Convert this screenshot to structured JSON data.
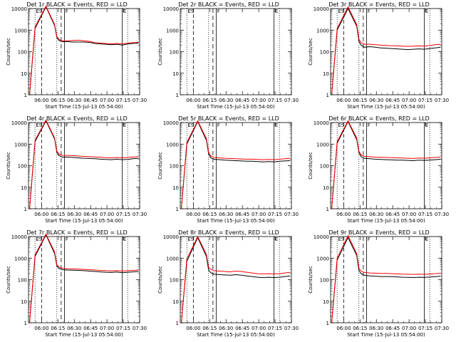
{
  "common": {
    "ylabel": "Counts/sec",
    "xlabel": "Start Time (15-Jul-13 05:54:00)",
    "x_ticks": [
      "06:00",
      "06:15",
      "06:30",
      "06:45",
      "07:00",
      "07:15",
      "07:30"
    ],
    "y_ticks": [
      "1",
      "10",
      "100",
      "1000",
      "10000"
    ],
    "marker_labels": [
      "ES",
      "F",
      "E"
    ],
    "colors": {
      "events": "#000000",
      "lld": "#ff0000",
      "axis": "#000000"
    }
  },
  "chart_data": [
    {
      "type": "line",
      "title": "Det 1r BLACK = Events, RED = LLD",
      "x_minutes": [
        -5,
        0,
        10,
        18,
        20,
        22,
        25,
        30,
        35,
        40,
        45,
        50,
        55,
        60,
        65,
        70,
        75,
        80,
        85,
        90,
        95
      ],
      "series": [
        {
          "name": "Events",
          "values": [
            1,
            1200,
            12000,
            1600,
            450,
            330,
            290,
            290,
            280,
            280,
            280,
            270,
            240,
            230,
            220,
            210,
            220,
            200,
            230,
            240,
            250
          ]
        },
        {
          "name": "LLD",
          "values": [
            1,
            1400,
            13000,
            1800,
            500,
            370,
            320,
            320,
            330,
            340,
            320,
            300,
            260,
            250,
            240,
            230,
            240,
            230,
            250,
            260,
            270
          ]
        }
      ],
      "xlim": [
        -6,
        96
      ],
      "ylim": [
        1,
        10000
      ],
      "yscale": "log"
    },
    {
      "type": "line",
      "title": "Det 2r BLACK = Events, RED = LLD",
      "x_minutes": [],
      "series": [
        {
          "name": "Events",
          "values": []
        },
        {
          "name": "LLD",
          "values": []
        }
      ],
      "xlim": [
        -6,
        96
      ],
      "ylim": [
        1,
        10000
      ],
      "yscale": "log"
    },
    {
      "type": "line",
      "title": "Det 3r BLACK = Events, RED = LLD",
      "x_minutes": [
        -5,
        0,
        10,
        18,
        20,
        22,
        25,
        30,
        35,
        40,
        45,
        50,
        55,
        60,
        65,
        70,
        75,
        80,
        85,
        90,
        95
      ],
      "series": [
        {
          "name": "Events",
          "values": [
            1,
            1000,
            10000,
            1500,
            300,
            200,
            160,
            170,
            160,
            150,
            145,
            140,
            135,
            130,
            125,
            130,
            135,
            130,
            140,
            150,
            160
          ]
        },
        {
          "name": "LLD",
          "values": [
            1,
            1200,
            12000,
            1800,
            380,
            260,
            220,
            220,
            210,
            200,
            195,
            190,
            185,
            180,
            175,
            180,
            185,
            180,
            195,
            210,
            220
          ]
        }
      ],
      "xlim": [
        -6,
        96
      ],
      "ylim": [
        1,
        10000
      ],
      "yscale": "log"
    },
    {
      "type": "line",
      "title": "Det 4r BLACK = Events, RED = LLD",
      "x_minutes": [
        -5,
        0,
        10,
        18,
        20,
        22,
        25,
        30,
        35,
        40,
        45,
        50,
        55,
        60,
        65,
        70,
        75,
        80,
        85,
        90,
        95
      ],
      "series": [
        {
          "name": "Events",
          "values": [
            1,
            1300,
            12000,
            1700,
            400,
            290,
            250,
            250,
            240,
            230,
            220,
            215,
            210,
            200,
            195,
            190,
            200,
            190,
            195,
            210,
            220
          ]
        },
        {
          "name": "LLD",
          "values": [
            1,
            1500,
            13000,
            1900,
            480,
            340,
            300,
            300,
            290,
            280,
            270,
            260,
            255,
            245,
            235,
            230,
            240,
            230,
            240,
            250,
            260
          ]
        }
      ],
      "xlim": [
        -6,
        96
      ],
      "ylim": [
        1,
        10000
      ],
      "yscale": "log"
    },
    {
      "type": "line",
      "title": "Det 5r BLACK = Events, RED = LLD",
      "x_minutes": [
        -5,
        0,
        10,
        18,
        20,
        22,
        25,
        30,
        35,
        40,
        45,
        50,
        55,
        60,
        65,
        70,
        75,
        80,
        85,
        90,
        95
      ],
      "series": [
        {
          "name": "Events",
          "values": [
            1,
            1000,
            11000,
            1500,
            350,
            230,
            200,
            190,
            180,
            175,
            170,
            165,
            160,
            160,
            155,
            150,
            155,
            150,
            160,
            165,
            170
          ]
        },
        {
          "name": "LLD",
          "values": [
            1,
            1200,
            12000,
            1800,
            420,
            280,
            240,
            230,
            220,
            215,
            210,
            205,
            200,
            200,
            195,
            190,
            195,
            190,
            200,
            210,
            220
          ]
        }
      ],
      "xlim": [
        -6,
        96
      ],
      "ylim": [
        1,
        10000
      ],
      "yscale": "log"
    },
    {
      "type": "line",
      "title": "Det 6r BLACK = Events, RED = LLD",
      "x_minutes": [
        -5,
        0,
        10,
        18,
        20,
        22,
        25,
        30,
        35,
        40,
        45,
        50,
        55,
        60,
        65,
        70,
        75,
        80,
        85,
        90,
        95
      ],
      "series": [
        {
          "name": "Events",
          "values": [
            1,
            1100,
            11000,
            1600,
            400,
            260,
            220,
            210,
            200,
            195,
            190,
            185,
            180,
            180,
            175,
            170,
            180,
            175,
            180,
            190,
            200
          ]
        },
        {
          "name": "LLD",
          "values": [
            1,
            1300,
            12000,
            1900,
            470,
            310,
            270,
            260,
            250,
            245,
            240,
            235,
            230,
            225,
            220,
            215,
            225,
            220,
            230,
            240,
            250
          ]
        }
      ],
      "xlim": [
        -6,
        96
      ],
      "ylim": [
        1,
        10000
      ],
      "yscale": "log"
    },
    {
      "type": "line",
      "title": "Det 7r BLACK = Events, RED = LLD",
      "x_minutes": [
        -5,
        0,
        10,
        18,
        20,
        22,
        25,
        30,
        35,
        40,
        45,
        50,
        55,
        60,
        65,
        70,
        75,
        80,
        85,
        90,
        95
      ],
      "series": [
        {
          "name": "Events",
          "values": [
            1,
            1200,
            12000,
            1600,
            430,
            330,
            290,
            280,
            275,
            270,
            260,
            250,
            240,
            230,
            220,
            215,
            225,
            210,
            220,
            230,
            240
          ]
        },
        {
          "name": "LLD",
          "values": [
            1,
            1400,
            13000,
            1900,
            500,
            380,
            340,
            320,
            315,
            310,
            300,
            290,
            280,
            270,
            260,
            255,
            265,
            250,
            260,
            270,
            280
          ]
        }
      ],
      "xlim": [
        -6,
        96
      ],
      "ylim": [
        1,
        10000
      ],
      "yscale": "log"
    },
    {
      "type": "line",
      "title": "Det 8r BLACK = Events, RED = LLD",
      "x_minutes": [
        -5,
        0,
        10,
        18,
        20,
        22,
        25,
        30,
        35,
        40,
        45,
        50,
        55,
        60,
        65,
        70,
        75,
        80,
        85,
        90,
        95
      ],
      "series": [
        {
          "name": "Events",
          "values": [
            1,
            700,
            9000,
            1200,
            280,
            210,
            180,
            170,
            165,
            160,
            170,
            160,
            150,
            140,
            130,
            125,
            130,
            125,
            130,
            140,
            150
          ]
        },
        {
          "name": "LLD",
          "values": [
            1,
            900,
            10000,
            1500,
            380,
            300,
            260,
            250,
            240,
            230,
            250,
            240,
            220,
            205,
            190,
            185,
            190,
            185,
            190,
            205,
            220
          ]
        }
      ],
      "xlim": [
        -6,
        96
      ],
      "ylim": [
        1,
        10000
      ],
      "yscale": "log"
    },
    {
      "type": "line",
      "title": "Det 9r BLACK = Events, RED = LLD",
      "x_minutes": [
        -5,
        0,
        10,
        18,
        20,
        22,
        25,
        30,
        35,
        40,
        45,
        50,
        55,
        60,
        65,
        70,
        75,
        80,
        85,
        90,
        95
      ],
      "series": [
        {
          "name": "Events",
          "values": [
            1,
            800,
            9000,
            1300,
            260,
            190,
            160,
            150,
            145,
            140,
            140,
            138,
            135,
            130,
            128,
            126,
            130,
            128,
            132,
            138,
            145
          ]
        },
        {
          "name": "LLD",
          "values": [
            1,
            1000,
            11000,
            1600,
            340,
            250,
            215,
            205,
            200,
            195,
            195,
            190,
            185,
            180,
            178,
            176,
            180,
            176,
            182,
            190,
            200
          ]
        }
      ],
      "xlim": [
        -6,
        96
      ],
      "ylim": [
        1,
        10000
      ],
      "yscale": "log"
    }
  ]
}
